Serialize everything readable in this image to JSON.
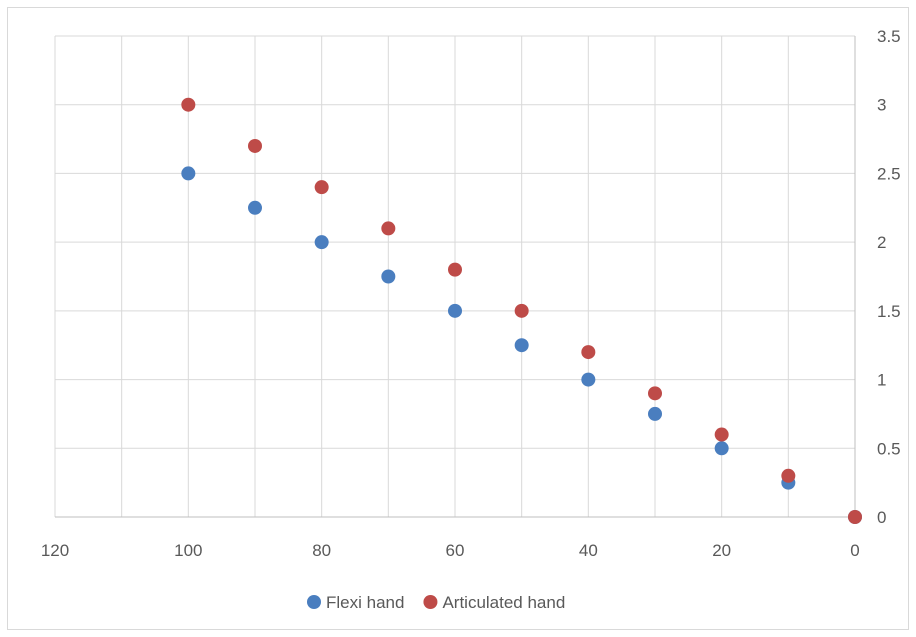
{
  "chart_data": {
    "type": "scatter",
    "x_reversed": true,
    "y_axis_position": "right",
    "xlim": [
      0,
      120
    ],
    "ylim": [
      0,
      3.5
    ],
    "x_ticks": [
      0,
      20,
      40,
      60,
      80,
      100,
      120
    ],
    "y_ticks": [
      0,
      0.5,
      1,
      1.5,
      2,
      2.5,
      3,
      3.5
    ],
    "x_tick_labels": [
      "0",
      "20",
      "40",
      "60",
      "80",
      "100",
      "120"
    ],
    "y_tick_labels": [
      "0",
      "0.5",
      "1",
      "1.5",
      "2",
      "2.5",
      "3",
      "3.5"
    ],
    "x_gridlines": [
      10,
      30,
      50,
      70,
      90,
      110
    ],
    "grid": true,
    "legend_position": "bottom",
    "series": [
      {
        "name": "Flexi hand",
        "color": "#4a7ebf",
        "points": [
          {
            "x": 100,
            "y": 2.5
          },
          {
            "x": 90,
            "y": 2.25
          },
          {
            "x": 80,
            "y": 2.0
          },
          {
            "x": 70,
            "y": 1.75
          },
          {
            "x": 60,
            "y": 1.5
          },
          {
            "x": 50,
            "y": 1.25
          },
          {
            "x": 40,
            "y": 1.0
          },
          {
            "x": 30,
            "y": 0.75
          },
          {
            "x": 20,
            "y": 0.5
          },
          {
            "x": 10,
            "y": 0.25
          },
          {
            "x": 0,
            "y": 0
          }
        ]
      },
      {
        "name": "Articulated hand",
        "color": "#be4b48",
        "points": [
          {
            "x": 100,
            "y": 3.0
          },
          {
            "x": 90,
            "y": 2.7
          },
          {
            "x": 80,
            "y": 2.4
          },
          {
            "x": 70,
            "y": 2.1
          },
          {
            "x": 60,
            "y": 1.8
          },
          {
            "x": 50,
            "y": 1.5
          },
          {
            "x": 40,
            "y": 1.2
          },
          {
            "x": 30,
            "y": 0.9
          },
          {
            "x": 20,
            "y": 0.6
          },
          {
            "x": 10,
            "y": 0.3
          },
          {
            "x": 0,
            "y": 0
          }
        ]
      }
    ]
  }
}
